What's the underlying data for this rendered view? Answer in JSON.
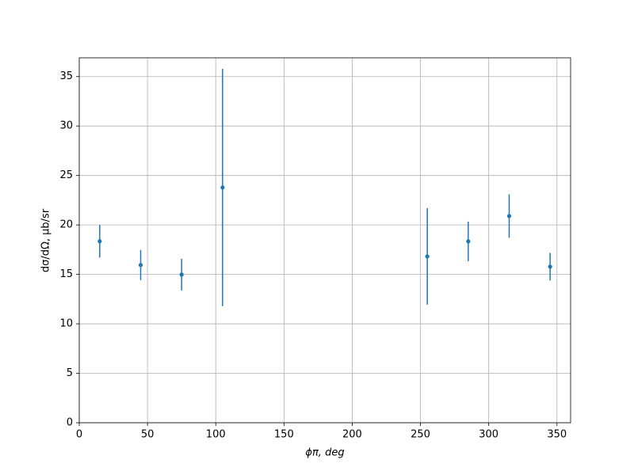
{
  "chart_data": {
    "type": "errorbar",
    "xlabel": "ϕπ, deg",
    "ylabel": "dσ/dΩ, μb/sr",
    "x": [
      15,
      45,
      75,
      105,
      255,
      285,
      315,
      345
    ],
    "values": [
      18.35,
      15.95,
      14.98,
      23.79,
      16.82,
      18.34,
      20.9,
      15.78
    ],
    "errors": [
      1.65,
      1.52,
      1.6,
      12.0,
      4.88,
      2.0,
      2.2,
      1.4
    ],
    "color": "#1f77b4",
    "xlim": [
      0,
      360
    ],
    "ylim": [
      0,
      36.9
    ],
    "xticks": [
      0,
      50,
      100,
      150,
      200,
      250,
      300,
      350
    ],
    "yticks": [
      0,
      5,
      10,
      15,
      20,
      25,
      30,
      35
    ],
    "grid": true
  }
}
